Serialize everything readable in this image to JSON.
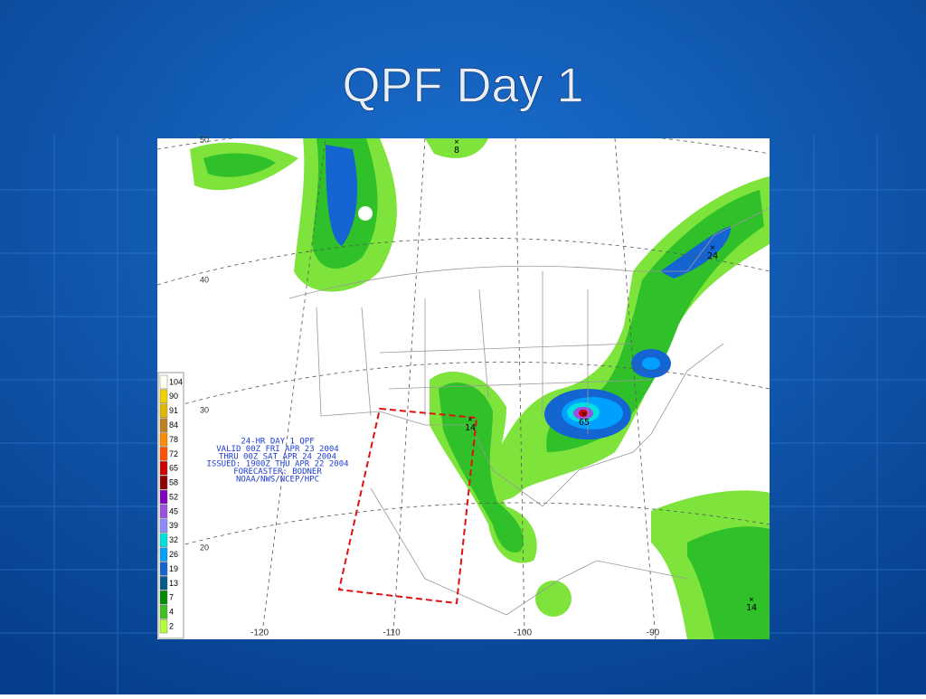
{
  "title": "QPF Day 1",
  "map": {
    "info": [
      "24-HR DAY 1 QPF",
      "VALID 00Z FRI APR 23 2004",
      "THRU 00Z SAT APR 24 2004",
      "ISSUED: 1900Z THU APR 22 2004",
      "FORECASTER: BODNER",
      "NOAA/NWS/NCEP/HPC"
    ],
    "legend": [
      {
        "label": 104,
        "color": "#fffff0"
      },
      {
        "label": 90,
        "color": "#f0d000"
      },
      {
        "label": 91,
        "color": "#e0b800"
      },
      {
        "label": 84,
        "color": "#c08020"
      },
      {
        "label": 78,
        "color": "#ff8c00"
      },
      {
        "label": 72,
        "color": "#ff5000"
      },
      {
        "label": 65,
        "color": "#d00000"
      },
      {
        "label": 58,
        "color": "#900000"
      },
      {
        "label": 52,
        "color": "#8000c0"
      },
      {
        "label": 45,
        "color": "#9a50e0"
      },
      {
        "label": 39,
        "color": "#8c8cff"
      },
      {
        "label": 32,
        "color": "#00e0e0"
      },
      {
        "label": 26,
        "color": "#00a0ff"
      },
      {
        "label": 19,
        "color": "#1464d2"
      },
      {
        "label": 13,
        "color": "#005a8c"
      },
      {
        "label": 7,
        "color": "#008c00"
      },
      {
        "label": 4,
        "color": "#40c020"
      },
      {
        "label": 2,
        "color": "#b4ff3c"
      }
    ],
    "latitude_labels": [
      50,
      40,
      30,
      20
    ],
    "longitude_labels": [
      -120,
      -110,
      -100,
      -90
    ],
    "maxima": [
      8,
      24,
      65,
      14,
      14
    ]
  }
}
